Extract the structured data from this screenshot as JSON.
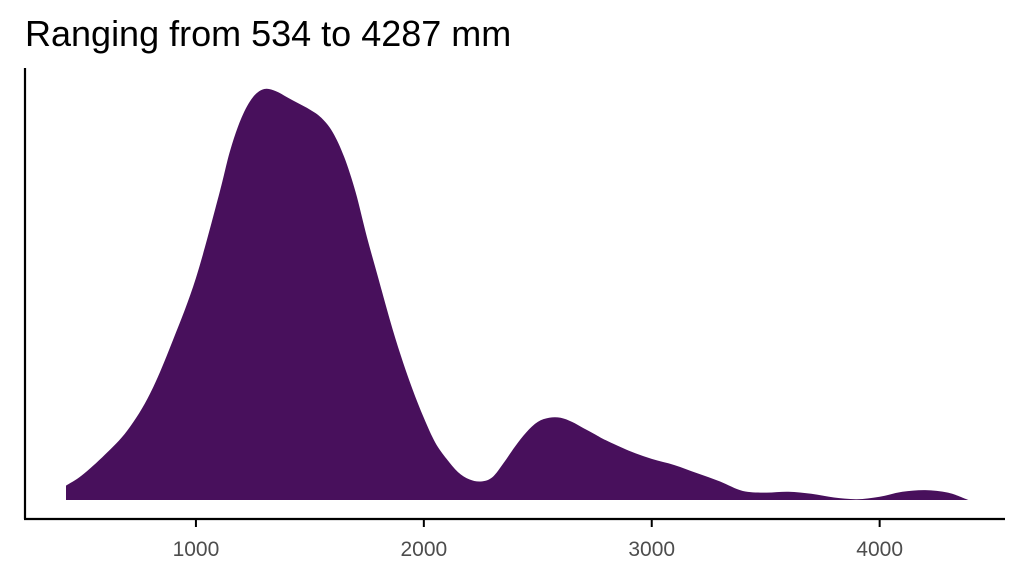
{
  "title": "Ranging from 534 to 4287 mm",
  "chart_data": {
    "type": "area",
    "title": "Ranging from 534 to 4287 mm",
    "xlabel": "",
    "ylabel": "",
    "xlim": [
      250,
      4550
    ],
    "ylim": [
      0,
      1.0
    ],
    "x_ticks": [
      1000,
      2000,
      3000,
      4000
    ],
    "x_tick_labels": [
      "1000",
      "2000",
      "3000",
      "4000"
    ],
    "y_axis_labels_shown": false,
    "grid": false,
    "fill_color": "#48105c",
    "series": [
      {
        "x": [
          430,
          500,
          600,
          700,
          800,
          900,
          1000,
          1100,
          1150,
          1200,
          1250,
          1300,
          1350,
          1400,
          1450,
          1500,
          1550,
          1600,
          1650,
          1700,
          1750,
          1800,
          1850,
          1900,
          1950,
          2000,
          2050,
          2100,
          2150,
          2200,
          2250,
          2300,
          2350,
          2400,
          2450,
          2500,
          2550,
          2600,
          2650,
          2700,
          2750,
          2800,
          2900,
          3000,
          3100,
          3200,
          3300,
          3400,
          3500,
          3600,
          3700,
          3800,
          3900,
          4000,
          4100,
          4200,
          4300,
          4390
        ],
        "y": [
          0.035,
          0.06,
          0.11,
          0.17,
          0.26,
          0.39,
          0.54,
          0.74,
          0.85,
          0.93,
          0.98,
          1.0,
          0.995,
          0.98,
          0.965,
          0.95,
          0.93,
          0.895,
          0.835,
          0.75,
          0.64,
          0.54,
          0.44,
          0.35,
          0.27,
          0.2,
          0.14,
          0.1,
          0.068,
          0.05,
          0.045,
          0.055,
          0.09,
          0.13,
          0.165,
          0.19,
          0.2,
          0.2,
          0.19,
          0.175,
          0.16,
          0.145,
          0.12,
          0.1,
          0.085,
          0.065,
          0.045,
          0.022,
          0.018,
          0.02,
          0.015,
          0.006,
          0.002,
          0.008,
          0.02,
          0.024,
          0.018,
          0.0
        ]
      }
    ]
  }
}
